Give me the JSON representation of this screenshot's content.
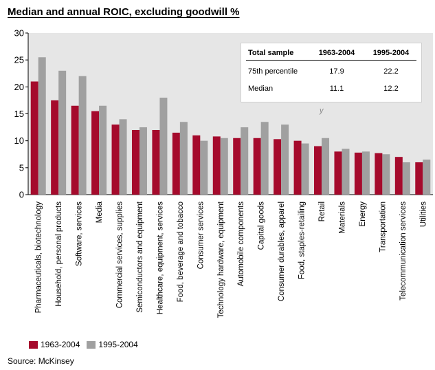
{
  "title": "Median and annual ROIC, excluding goodwill %",
  "colors": {
    "series1": "#a50a2c",
    "series2": "#a0a0a0",
    "plot_bg": "#e6e6e6"
  },
  "stats_table": {
    "headers": [
      "Total sample",
      "1963-2004",
      "1995-2004"
    ],
    "rows": [
      [
        "75th percentile",
        "17.9",
        "22.2"
      ],
      [
        "Median",
        "11.1",
        "12.2"
      ]
    ]
  },
  "stray_mark": "y",
  "legend": [
    {
      "name": "1963-2004"
    },
    {
      "name": "1995-2004"
    }
  ],
  "source": "Source: McKinsey",
  "chart_data": {
    "type": "bar",
    "title": "Median and annual ROIC, excluding goodwill %",
    "xlabel": "",
    "ylabel": "",
    "ylim": [
      0,
      30
    ],
    "yticks": [
      0,
      5,
      10,
      15,
      20,
      25,
      30
    ],
    "grid": false,
    "legend_position": "bottom-left",
    "categories": [
      "Pharmaceuticals, biotechnology",
      "Household, personal products",
      "Software, services",
      "Media",
      "Commercial services, supplies",
      "Semiconductors and equipment",
      "Healthcare, equipment, services",
      "Food, beverage and tobacco",
      "Consumer services",
      "Technology hardware, equipment",
      "Automobile components",
      "Capital goods",
      "Consumer durables, apparel",
      "Food, staples-retailing",
      "Retail",
      "Materials",
      "Energy",
      "Transportation",
      "Telecommunication services",
      "Utilities"
    ],
    "series": [
      {
        "name": "1963-2004",
        "values": [
          21,
          17.5,
          16.5,
          15.5,
          13,
          12,
          12,
          11.5,
          11,
          10.8,
          10.5,
          10.5,
          10.3,
          10,
          9,
          8,
          7.8,
          7.7,
          7,
          6
        ]
      },
      {
        "name": "1995-2004",
        "values": [
          25.5,
          23,
          22,
          16.5,
          14,
          12.5,
          18,
          13.5,
          10,
          10.5,
          12.5,
          13.5,
          13,
          9.5,
          10.5,
          8.5,
          8,
          7.5,
          6,
          6.5
        ]
      }
    ]
  }
}
